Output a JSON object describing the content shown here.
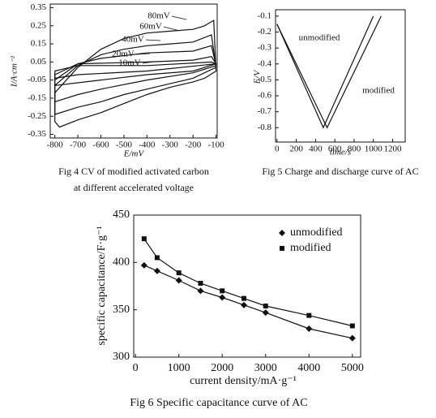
{
  "chart_data": [
    {
      "type": "line",
      "closed": true,
      "xlabel": "E/mV",
      "ylabel": "I/A·cm⁻²",
      "caption": [
        "Fig 4   CV of modified activated carbon",
        "at different accelerated voltage"
      ],
      "xlim": [
        -820,
        -95
      ],
      "ylim": [
        -0.37,
        0.37
      ],
      "xticks": [
        -800,
        -700,
        -600,
        -500,
        -400,
        -300,
        -200,
        -100
      ],
      "yticks": [
        0.35,
        0.25,
        0.15,
        0.05,
        -0.05,
        -0.15,
        -0.25,
        -0.35
      ],
      "series": [
        {
          "name": "80mV",
          "color": "#111",
          "x": [
            -800,
            -700,
            -600,
            -500,
            -400,
            -300,
            -200,
            -150,
            -110,
            -100,
            -150,
            -200,
            -300,
            -400,
            -500,
            -600,
            -700,
            -780,
            -800
          ],
          "values": [
            -0.12,
            0.02,
            0.12,
            0.18,
            0.21,
            0.22,
            0.23,
            0.25,
            0.28,
            0.0,
            -0.04,
            -0.06,
            -0.09,
            -0.13,
            -0.18,
            -0.23,
            -0.27,
            -0.31,
            -0.28
          ]
        },
        {
          "name": "60mV",
          "color": "#111",
          "x": [
            -800,
            -700,
            -600,
            -500,
            -400,
            -300,
            -200,
            -120,
            -100,
            -200,
            -300,
            -400,
            -500,
            -600,
            -700,
            -800
          ],
          "values": [
            -0.08,
            0.03,
            0.09,
            0.12,
            0.14,
            0.15,
            0.16,
            0.2,
            0.02,
            -0.04,
            -0.07,
            -0.1,
            -0.13,
            -0.17,
            -0.2,
            -0.24
          ]
        },
        {
          "name": "40mV",
          "color": "#111",
          "x": [
            -800,
            -700,
            -600,
            -400,
            -200,
            -120,
            -100,
            -200,
            -400,
            -600,
            -700,
            -800
          ],
          "values": [
            -0.05,
            0.04,
            0.07,
            0.1,
            0.11,
            0.14,
            0.03,
            -0.01,
            -0.05,
            -0.1,
            -0.13,
            -0.17
          ]
        },
        {
          "name": "20mV",
          "color": "#111",
          "x": [
            -800,
            -700,
            -400,
            -200,
            -120,
            -100,
            -200,
            -400,
            -600,
            -800
          ],
          "values": [
            -0.02,
            0.04,
            0.05,
            0.06,
            0.08,
            0.04,
            0.0,
            -0.02,
            -0.05,
            -0.08
          ]
        },
        {
          "name": "10mV",
          "color": "#111",
          "x": [
            -800,
            -700,
            -400,
            -120,
            -100,
            -400,
            -700,
            -800
          ],
          "values": [
            0.0,
            0.03,
            0.03,
            0.05,
            0.04,
            0.0,
            -0.02,
            -0.04
          ]
        }
      ]
    },
    {
      "type": "line",
      "xlabel": "time/s",
      "ylabel": "E/V",
      "caption": [
        "Fig 5   Charge and discharge curve of AC"
      ],
      "xlim": [
        -15,
        1330
      ],
      "ylim": [
        -0.89,
        -0.06
      ],
      "xticks": [
        0,
        200,
        400,
        600,
        800,
        1000,
        1200
      ],
      "yticks": [
        -0.1,
        -0.2,
        -0.3,
        -0.4,
        -0.5,
        -0.6,
        -0.7,
        -0.8
      ],
      "series": [
        {
          "name": "unmodified",
          "color": "#111",
          "x": [
            0,
            480,
            1000
          ],
          "values": [
            -0.15,
            -0.8,
            -0.1
          ]
        },
        {
          "name": "modified",
          "color": "#111",
          "x": [
            0,
            520,
            1080
          ],
          "values": [
            -0.15,
            -0.8,
            -0.1
          ]
        }
      ]
    },
    {
      "type": "line",
      "xlabel": "current density/mA·g⁻¹",
      "ylabel": "specific capacitance/F·g⁻¹",
      "caption": [
        "Fig 6   Specific capacitance curve of AC"
      ],
      "xlim": [
        -40,
        5190
      ],
      "ylim": [
        300,
        450
      ],
      "xticks": [
        0,
        1000,
        2000,
        3000,
        4000,
        5000
      ],
      "yticks": [
        300,
        350,
        400,
        450
      ],
      "legend": "upper right",
      "series": [
        {
          "name": "unmodified",
          "color": "#111",
          "marker": "diamond",
          "x": [
            200,
            500,
            1000,
            1500,
            2000,
            2500,
            3000,
            4000,
            5000
          ],
          "values": [
            397,
            391,
            381,
            370,
            363,
            355,
            347,
            330,
            320
          ]
        },
        {
          "name": "modified",
          "color": "#111",
          "marker": "square",
          "x": [
            200,
            500,
            1000,
            1500,
            2000,
            2500,
            3000,
            4000,
            5000
          ],
          "values": [
            425,
            405,
            389,
            378,
            370,
            362,
            354,
            344,
            333
          ]
        }
      ]
    }
  ]
}
